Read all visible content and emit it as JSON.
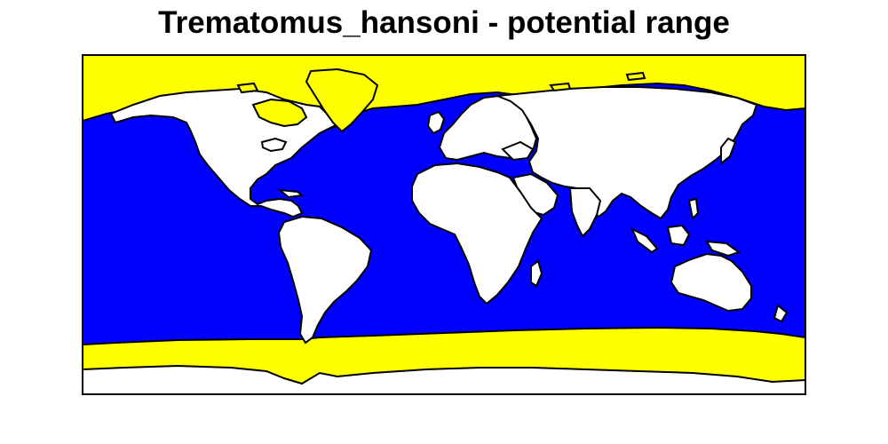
{
  "map": {
    "title": "Trematomus_hansoni - potential range",
    "colors": {
      "background": "#ffffff",
      "ocean_unsuitable": "#0000ff",
      "potential_range": "#ffff00",
      "land": "#ffffff",
      "outline": "#000000"
    }
  }
}
